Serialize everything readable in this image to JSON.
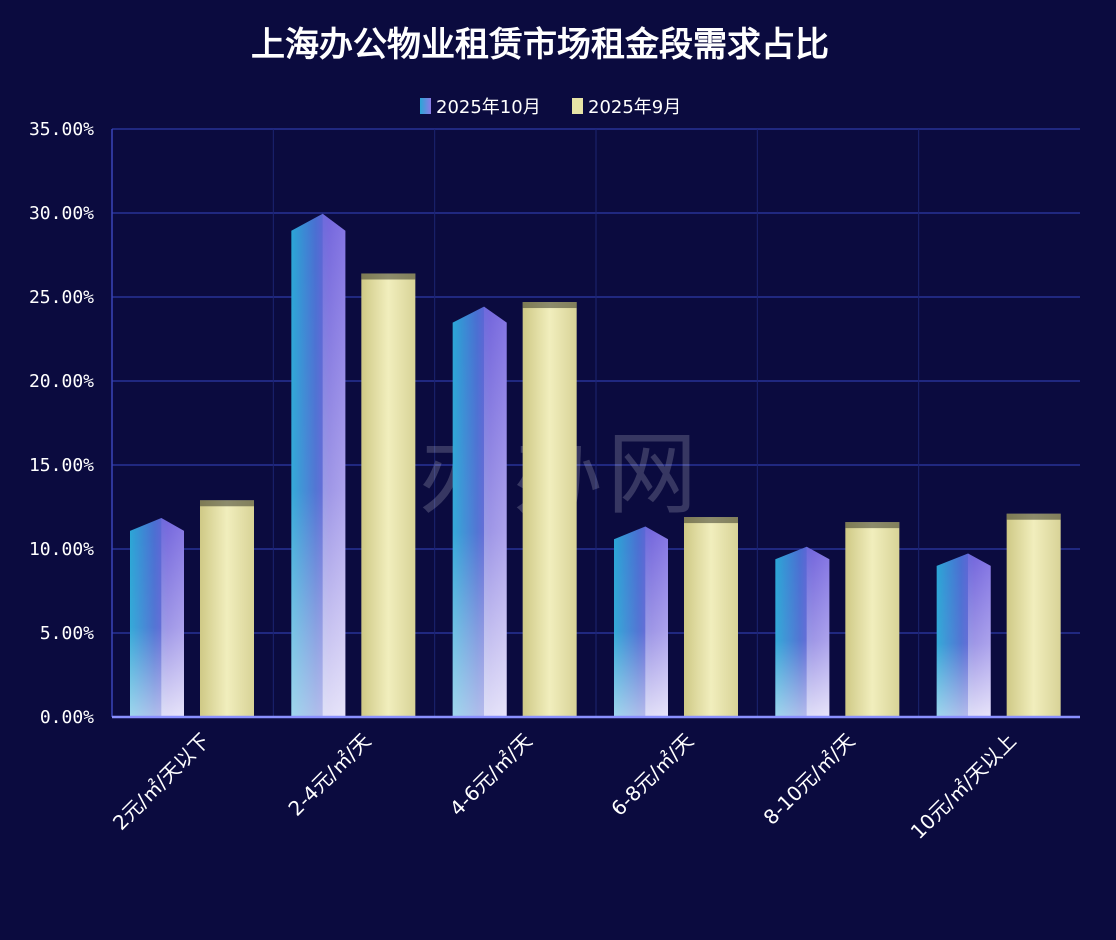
{
  "chart_data": {
    "type": "bar",
    "title": "上海办公物业租赁市场租金段需求占比",
    "categories": [
      "2元/㎡/天以下",
      "2-4元/㎡/天",
      "4-6元/㎡/天",
      "6-8元/㎡/天",
      "8-10元/㎡/天",
      "10元/㎡/天以上"
    ],
    "series": [
      {
        "name": "2025年10月",
        "values": [
          11.5,
          29.5,
          24.0,
          11.0,
          9.8,
          9.4
        ],
        "color": "#5a6ad6"
      },
      {
        "name": "2025年9月",
        "values": [
          12.9,
          26.4,
          24.7,
          11.9,
          11.6,
          12.1
        ],
        "color": "#e6e3a6"
      }
    ],
    "ylim": [
      0,
      35
    ],
    "yticks": [
      "0.00%",
      "5.00%",
      "10.00%",
      "15.00%",
      "20.00%",
      "25.00%",
      "30.00%",
      "35.00%"
    ],
    "grid": true,
    "legend_position": "top-center",
    "xlabel": "",
    "ylabel": "",
    "background_color": "#0b0b3f",
    "grid_color": "#2e3aa8"
  },
  "watermark": "办办网"
}
